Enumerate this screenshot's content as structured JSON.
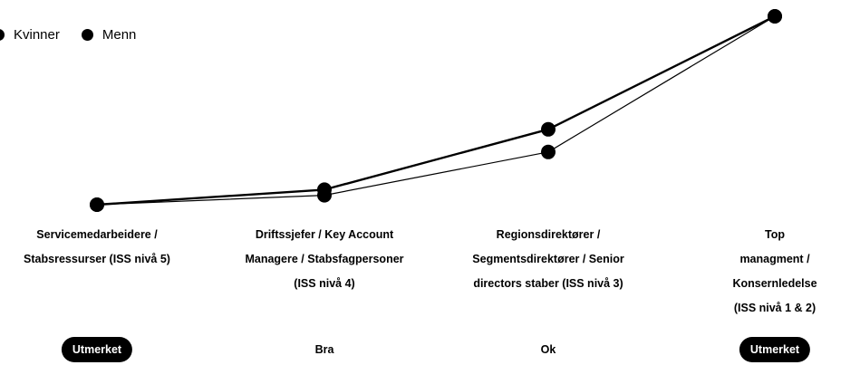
{
  "chart_data": {
    "type": "line",
    "categories": [
      "Servicemedarbeidere /\nStabsressurser (ISS nivå 5)",
      "Driftssjefer / Key Account\nManagere / Stabsfagpersoner\n(ISS nivå 4)",
      "Regionsdirektører /\nSegmentsdirektører / Senior\ndirectors staber (ISS nivå 3)",
      "Top managment /\nKonsernledelse (ISS nivå 1 & 2)"
    ],
    "series": [
      {
        "name": "Kvinner",
        "values": [
          0.0,
          0.05,
          0.28,
          1.0
        ],
        "color": "#000000"
      },
      {
        "name": "Menn",
        "values": [
          0.0,
          0.08,
          0.4,
          1.0
        ],
        "color": "#000000"
      }
    ],
    "ylim": [
      0,
      1
    ],
    "grid": false,
    "legend_position": "top-left",
    "ratings": [
      {
        "label": "Utmerket",
        "highlight": true
      },
      {
        "label": "Bra",
        "highlight": false
      },
      {
        "label": "Ok",
        "highlight": false
      },
      {
        "label": "Utmerket",
        "highlight": true
      }
    ]
  }
}
